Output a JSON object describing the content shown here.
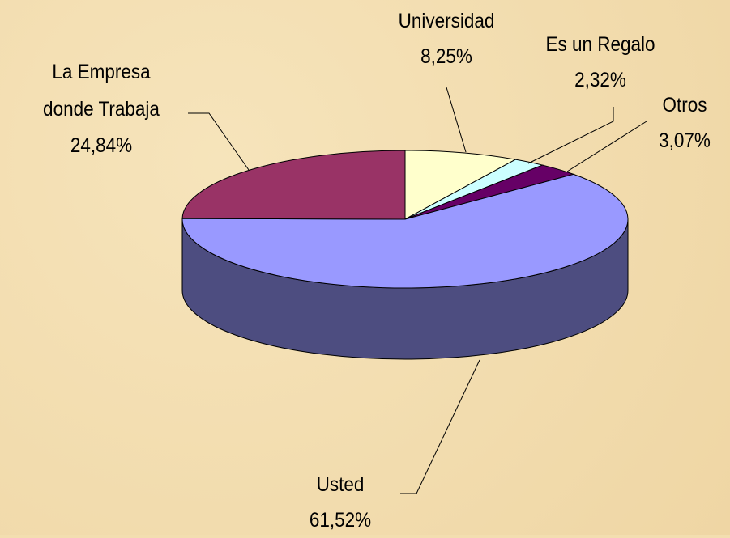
{
  "chart_data": {
    "type": "pie",
    "categories": [
      "Universidad",
      "Es un Regalo",
      "Otros",
      "Usted",
      "La Empresa donde Trabaja"
    ],
    "values": [
      8.25,
      2.32,
      3.07,
      61.52,
      24.84
    ],
    "value_labels": [
      "8,25%",
      "2,32%",
      "3,07%",
      "61,52%",
      "24,84%"
    ],
    "colors": [
      "#ffffcc",
      "#ccffff",
      "#660066",
      "#9999ff",
      "#993366"
    ],
    "side_colors": [
      "#80805f",
      "#608080",
      "#330033",
      "#4d4d80",
      "#4d1a33"
    ]
  }
}
